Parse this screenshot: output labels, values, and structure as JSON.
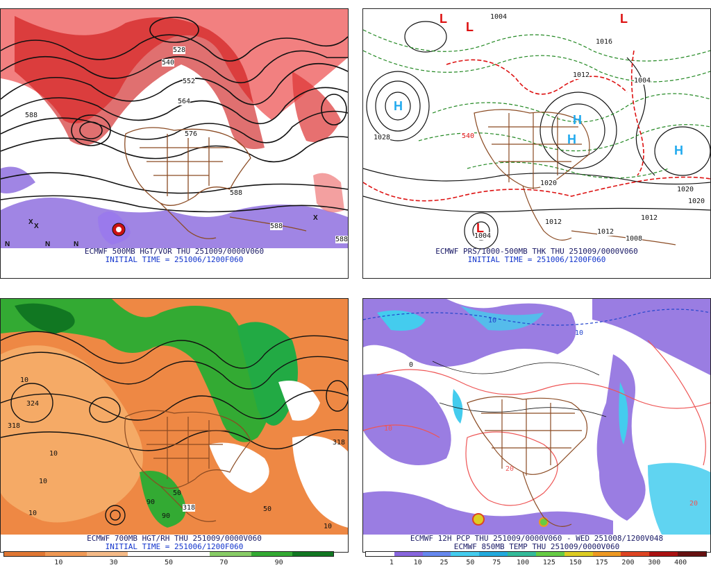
{
  "panels": [
    {
      "id": "p1",
      "caption_line1": "ECMWF 500MB HGT/VOR THU 251009/0000V060",
      "caption_line2": "INITIAL TIME = 251006/1200F060",
      "contour_labels": [
        "588",
        "552",
        "540",
        "564",
        "576",
        "528",
        "588",
        "588",
        "588"
      ],
      "symbols": [
        "X",
        "X",
        "X",
        "N",
        "N",
        "N"
      ],
      "colors": {
        "vort_high": "#cc0000",
        "vort_mid": "#ee4444",
        "vort_low": "#7755dd"
      }
    },
    {
      "id": "p2",
      "caption_line1": "ECMWF PRS/1000-500MB THK THU 251009/0000V060",
      "caption_line2": "INITIAL TIME = 251006/1200F060",
      "contour_labels": [
        "1004",
        "1028",
        "1020",
        "1012",
        "1020",
        "1020",
        "1012",
        "1012",
        "1012",
        "1004",
        "1008",
        "1016",
        "540",
        "1004"
      ],
      "high_symbols": [
        "H",
        "H",
        "H",
        "H"
      ],
      "low_symbols": [
        "L",
        "L",
        "L",
        "L"
      ],
      "colors": {
        "thickness": "#dd1111",
        "isobar": "#111111",
        "thk_cold": "#228822",
        "high": "#22aaee",
        "low": "#dd1111"
      }
    },
    {
      "id": "p3",
      "caption_line1": "ECMWF 700MB HGT/RH THU 251009/0000V060",
      "caption_line2": "INITIAL TIME = 251006/1200F060",
      "contour_labels": [
        "324",
        "318",
        "10",
        "10",
        "50",
        "90",
        "318",
        "10",
        "50",
        "10",
        "90",
        "318",
        "10"
      ],
      "colors": {
        "dry": "#ee8844",
        "moist": "#22aa33",
        "very_moist": "#117722"
      }
    },
    {
      "id": "p4",
      "caption_line1": "ECMWF 12H PCP THU 251009/0000V060 - WED 251008/1200V048",
      "caption_line2": "ECMWF 850MB TEMP THU 251009/0000V060",
      "contour_labels": [
        "10",
        "10",
        "0",
        "20",
        "10",
        "20"
      ],
      "colors": {
        "precip_light": "#8866dd",
        "precip_mod": "#44ccee",
        "temp_warm": "#ee5555",
        "temp_cold": "#2244cc"
      }
    }
  ],
  "colorbar_rh": {
    "ticks": [
      "10",
      "30",
      "50",
      "70",
      "90"
    ],
    "colors": [
      "#e07733",
      "#f09955",
      "#f5bb88",
      "#ffffff",
      "#ffffff",
      "#88cc66",
      "#33aa33",
      "#117722"
    ]
  },
  "colorbar_pcp": {
    "ticks": [
      "1",
      "10",
      "25",
      "50",
      "75",
      "100",
      "125",
      "150",
      "175",
      "200",
      "300",
      "400"
    ],
    "colors": [
      "#ffffff",
      "#8866dd",
      "#6688ee",
      "#44ccee",
      "#22aadd",
      "#33bb99",
      "#66cc44",
      "#ddcc22",
      "#ee9922",
      "#dd4422",
      "#aa1111",
      "#661111"
    ]
  }
}
